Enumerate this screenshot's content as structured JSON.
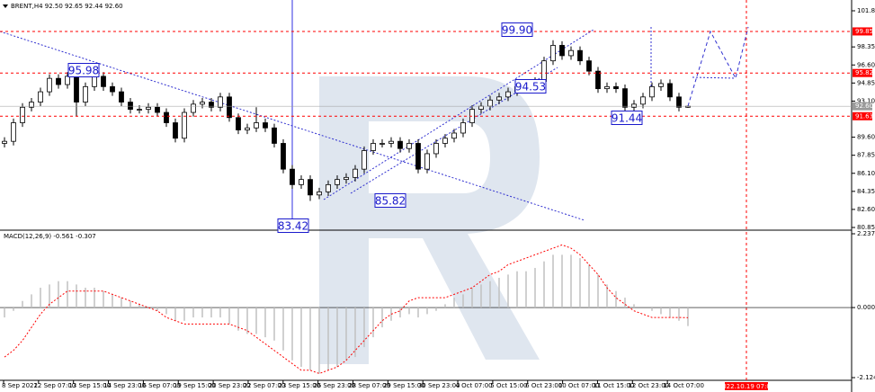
{
  "chart_data": [
    {
      "type": "candlestick",
      "title": "BRENT,H4 92.50 92.65 92.44 92.60",
      "ylim": [
        80.85,
        101.85
      ],
      "yticks": [
        101.85,
        98.35,
        {
          "value": 96.6,
          "label": "96.60"
        },
        94.85,
        {
          "value": 93.1,
          "label": "93.10"
        },
        {
          "value": 89.6,
          "label": "89.60"
        },
        87.85,
        {
          "value": 86.1,
          "label": "86.10"
        },
        84.35,
        {
          "value": 82.6,
          "label": "82.60"
        },
        80.85
      ],
      "up_color": "#ffffff",
      "down_color": "#000000",
      "wick_color": "#000000",
      "open": [
        89.0,
        89.2,
        91.0,
        92.5,
        93.0,
        94.0,
        95.3,
        94.7,
        95.5,
        93.0,
        94.5,
        95.5,
        94.5,
        94.0,
        93.0,
        92.3,
        92.3,
        92.5,
        92.0,
        91.0,
        89.5,
        92.0,
        92.8,
        93.0,
        92.5,
        93.5,
        91.5,
        90.3,
        90.5,
        91.0,
        90.5,
        89.0,
        86.5,
        85.0,
        85.5,
        84.0,
        84.3,
        85.0,
        85.5,
        85.7,
        86.5,
        88.3,
        89.0,
        89.0,
        89.2,
        88.5,
        89.0,
        86.5,
        88.0,
        89.0,
        89.5,
        90.0,
        91.0,
        92.3,
        92.6,
        93.2,
        93.5,
        94.0,
        94.5,
        94.3,
        95.0,
        97.0,
        98.5,
        97.5,
        98.0,
        97.0,
        96.0,
        94.3,
        94.5,
        94.3,
        92.5,
        92.8,
        93.5,
        94.5,
        94.8,
        93.5,
        92.5
      ],
      "high": [
        89.6,
        91.4,
        92.9,
        93.4,
        94.4,
        95.7,
        95.7,
        95.9,
        95.9,
        94.9,
        96.0,
        95.9,
        94.9,
        94.4,
        93.4,
        92.7,
        92.9,
        92.9,
        92.4,
        91.4,
        92.4,
        93.2,
        93.4,
        93.4,
        93.9,
        93.9,
        91.9,
        90.9,
        92.5,
        91.4,
        90.9,
        89.4,
        86.9,
        85.9,
        85.9,
        84.7,
        85.4,
        85.9,
        86.1,
        86.9,
        88.7,
        89.4,
        89.4,
        89.6,
        89.6,
        89.4,
        89.4,
        88.4,
        89.4,
        89.9,
        90.4,
        91.4,
        92.7,
        93.0,
        93.6,
        93.9,
        94.4,
        94.9,
        94.9,
        95.4,
        97.4,
        99.0,
        98.9,
        98.4,
        98.4,
        97.4,
        96.4,
        94.9,
        94.9,
        94.7,
        93.2,
        93.9,
        94.9,
        95.2,
        95.2,
        93.9,
        92.65
      ],
      "low": [
        88.6,
        88.8,
        90.6,
        92.1,
        92.6,
        93.6,
        94.3,
        94.3,
        91.6,
        92.6,
        94.1,
        94.1,
        93.6,
        92.6,
        91.9,
        91.9,
        91.9,
        91.6,
        90.6,
        89.1,
        89.1,
        91.6,
        92.4,
        92.1,
        92.1,
        91.1,
        89.9,
        89.9,
        90.1,
        90.1,
        88.6,
        86.1,
        84.6,
        84.6,
        83.42,
        83.6,
        83.9,
        84.6,
        85.1,
        85.3,
        86.1,
        87.9,
        88.6,
        88.6,
        88.1,
        88.1,
        86.1,
        86.1,
        87.6,
        88.6,
        89.1,
        89.6,
        90.6,
        91.9,
        92.2,
        92.8,
        93.1,
        93.6,
        93.9,
        93.9,
        94.6,
        96.6,
        97.1,
        97.1,
        96.6,
        95.6,
        93.9,
        93.9,
        93.9,
        92.1,
        91.44,
        92.4,
        93.1,
        94.1,
        93.1,
        92.1,
        92.44
      ],
      "close": [
        89.2,
        91.0,
        92.5,
        93.0,
        94.0,
        95.3,
        94.7,
        95.5,
        93.0,
        94.5,
        95.5,
        94.5,
        94.0,
        93.0,
        92.3,
        92.3,
        92.5,
        92.0,
        91.0,
        89.5,
        92.0,
        92.8,
        93.0,
        92.5,
        93.5,
        91.5,
        90.3,
        90.5,
        91.0,
        90.5,
        89.0,
        86.5,
        85.0,
        85.5,
        84.0,
        84.3,
        85.0,
        85.5,
        85.7,
        86.5,
        88.3,
        89.0,
        89.0,
        89.2,
        88.5,
        89.0,
        86.5,
        88.0,
        89.0,
        89.5,
        90.0,
        91.0,
        92.3,
        92.6,
        93.2,
        93.5,
        94.0,
        94.5,
        94.3,
        95.0,
        97.0,
        98.5,
        97.5,
        98.0,
        97.0,
        96.0,
        94.3,
        94.5,
        94.3,
        92.5,
        92.8,
        93.5,
        94.5,
        94.8,
        93.5,
        92.5,
        92.6
      ],
      "levels": [
        {
          "value": 99.85,
          "color": "#ff0000"
        },
        {
          "value": 95.82,
          "color": "#ff0000"
        },
        {
          "value": 91.63,
          "color": "#ff0000"
        },
        {
          "value": 92.6,
          "label": "92.60",
          "color": "#9a9a9a"
        }
      ],
      "annotations": [
        95.98,
        83.42,
        85.82,
        {
          "value": 99.9,
          "label": "99.90"
        },
        94.53,
        91.44
      ],
      "x_labels": [
        "8 Sep 2022",
        "12 Sep 07:00",
        "13 Sep 15:00",
        "14 Sep 23:00",
        "16 Sep 07:00",
        "19 Sep 15:00",
        "20 Sep 23:00",
        "22 Sep 07:00",
        "23 Sep 15:00",
        "26 Sep 23:00",
        "28 Sep 07:00",
        "29 Sep 15:00",
        "30 Sep 23:00",
        "4 Oct 07:00",
        "5 Oct 15:00",
        "6 Oct 23:00",
        "10 Oct 07:00",
        "11 Oct 15:00",
        "12 Oct 23:00",
        "14 Oct 07:00"
      ],
      "cursor_label": "2022.10.19 07:00"
    },
    {
      "type": "macd",
      "title": "MACD(12,26,9) -0.561 -0.307",
      "ylim": [
        -2.124,
        2.237
      ],
      "yticks": [
        2.237,
        {
          "value": 0,
          "label": "0.000"
        },
        -2.124
      ],
      "series": [
        {
          "name": "MACD",
          "color": "#c0c0c0",
          "values": [
            -0.3,
            -0.1,
            0.2,
            0.4,
            0.6,
            0.7,
            0.8,
            0.8,
            0.7,
            0.6,
            0.6,
            0.5,
            0.4,
            0.3,
            0.2,
            0.1,
            0.0,
            -0.1,
            -0.2,
            -0.4,
            -0.4,
            -0.3,
            -0.3,
            -0.3,
            -0.3,
            -0.5,
            -0.7,
            -0.8,
            -0.8,
            -0.9,
            -1.0,
            -1.3,
            -1.6,
            -1.8,
            -1.9,
            -2.0,
            -1.9,
            -1.8,
            -1.6,
            -1.5,
            -1.2,
            -0.9,
            -0.6,
            -0.4,
            -0.3,
            -0.2,
            -0.3,
            -0.2,
            -0.1,
            0.1,
            0.3,
            0.4,
            0.6,
            0.7,
            0.8,
            0.9,
            1.0,
            1.1,
            1.1,
            1.2,
            1.4,
            1.6,
            1.6,
            1.6,
            1.5,
            1.3,
            1.0,
            0.7,
            0.5,
            0.3,
            0.1,
            0.0,
            -0.1,
            -0.2,
            -0.3,
            -0.4,
            -0.561
          ]
        },
        {
          "name": "Signal",
          "color": "#ff0000",
          "values": [
            -1.5,
            -1.3,
            -1.0,
            -0.6,
            -0.2,
            0.1,
            0.3,
            0.5,
            0.5,
            0.5,
            0.5,
            0.5,
            0.4,
            0.3,
            0.2,
            0.1,
            0.0,
            -0.1,
            -0.3,
            -0.4,
            -0.5,
            -0.5,
            -0.5,
            -0.5,
            -0.5,
            -0.5,
            -0.6,
            -0.7,
            -0.9,
            -1.1,
            -1.3,
            -1.5,
            -1.7,
            -1.9,
            -1.9,
            -2.0,
            -1.9,
            -1.8,
            -1.6,
            -1.3,
            -1.0,
            -0.7,
            -0.4,
            -0.2,
            -0.1,
            0.2,
            0.3,
            0.3,
            0.3,
            0.3,
            0.4,
            0.5,
            0.6,
            0.8,
            1.0,
            1.1,
            1.3,
            1.4,
            1.5,
            1.6,
            1.7,
            1.8,
            1.9,
            1.8,
            1.6,
            1.3,
            1.0,
            0.6,
            0.3,
            0.1,
            -0.1,
            -0.2,
            -0.3,
            -0.3,
            -0.3,
            -0.3,
            -0.307
          ]
        }
      ]
    }
  ]
}
